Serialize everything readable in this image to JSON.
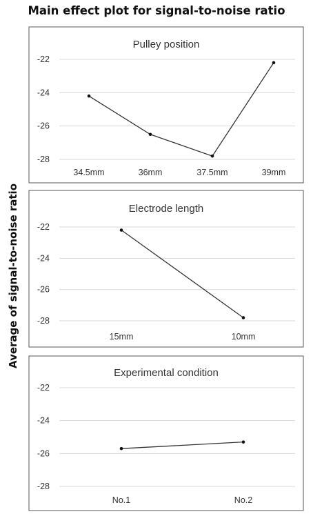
{
  "figure": {
    "title": "Main effect plot for signal-to-noise ratio",
    "ylabel": "Average of signal-to-noise ratio"
  },
  "chart_data": [
    {
      "type": "line",
      "title": "Pulley position",
      "categories": [
        "34.5mm",
        "36mm",
        "37.5mm",
        "39mm"
      ],
      "values": [
        -24.2,
        -26.5,
        -27.8,
        -22.2
      ],
      "ylim": [
        -28,
        -21
      ],
      "yticks": [
        -22,
        -24,
        -26,
        -28
      ],
      "grid": true,
      "line_color": "#333333",
      "gridline_color": "#d9d9d9",
      "frame_color": "#555555"
    },
    {
      "type": "line",
      "title": "Electrode length",
      "categories": [
        "15mm",
        "10mm"
      ],
      "values": [
        -22.2,
        -27.8
      ],
      "ylim": [
        -28,
        -21
      ],
      "yticks": [
        -22,
        -24,
        -26,
        -28
      ],
      "grid": true,
      "line_color": "#333333",
      "gridline_color": "#d9d9d9",
      "frame_color": "#555555"
    },
    {
      "type": "line",
      "title": "Experimental condition",
      "categories": [
        "No.1",
        "No.2"
      ],
      "values": [
        -25.7,
        -25.3
      ],
      "ylim": [
        -28,
        -21
      ],
      "yticks": [
        -22,
        -24,
        -26,
        -28
      ],
      "grid": true,
      "line_color": "#333333",
      "gridline_color": "#d9d9d9",
      "frame_color": "#555555"
    }
  ]
}
